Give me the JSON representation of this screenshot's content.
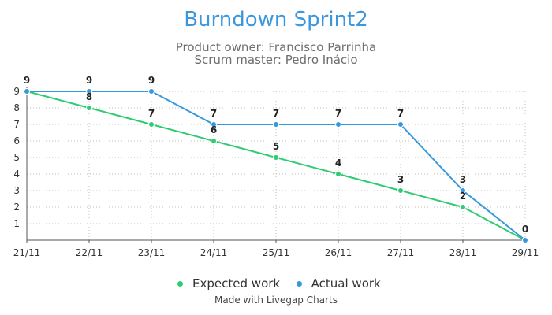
{
  "chart_data": {
    "type": "line",
    "title": "Burndown Sprint2",
    "subtitle_lines": [
      "Product owner: Francisco Parrinha",
      "Scrum master: Pedro Inácio"
    ],
    "categories": [
      "21/11",
      "22/11",
      "23/11",
      "24/11",
      "25/11",
      "26/11",
      "27/11",
      "28/11",
      "29/11"
    ],
    "series": [
      {
        "name": "Expected work",
        "color": "#2ecc71",
        "values": [
          9,
          8,
          7,
          6,
          5,
          4,
          3,
          2,
          0
        ]
      },
      {
        "name": "Actual work",
        "color": "#3498db",
        "values": [
          9,
          9,
          9,
          7,
          7,
          7,
          7,
          3,
          0
        ]
      }
    ],
    "y_ticks": [
      "1",
      "2",
      "3",
      "4",
      "5",
      "6",
      "7",
      "8",
      "9"
    ],
    "ylim": [
      0,
      9
    ],
    "xlabel": "",
    "ylabel": "",
    "grid": true,
    "legend_position": "bottom",
    "credit": "Made with Livegap Charts"
  }
}
